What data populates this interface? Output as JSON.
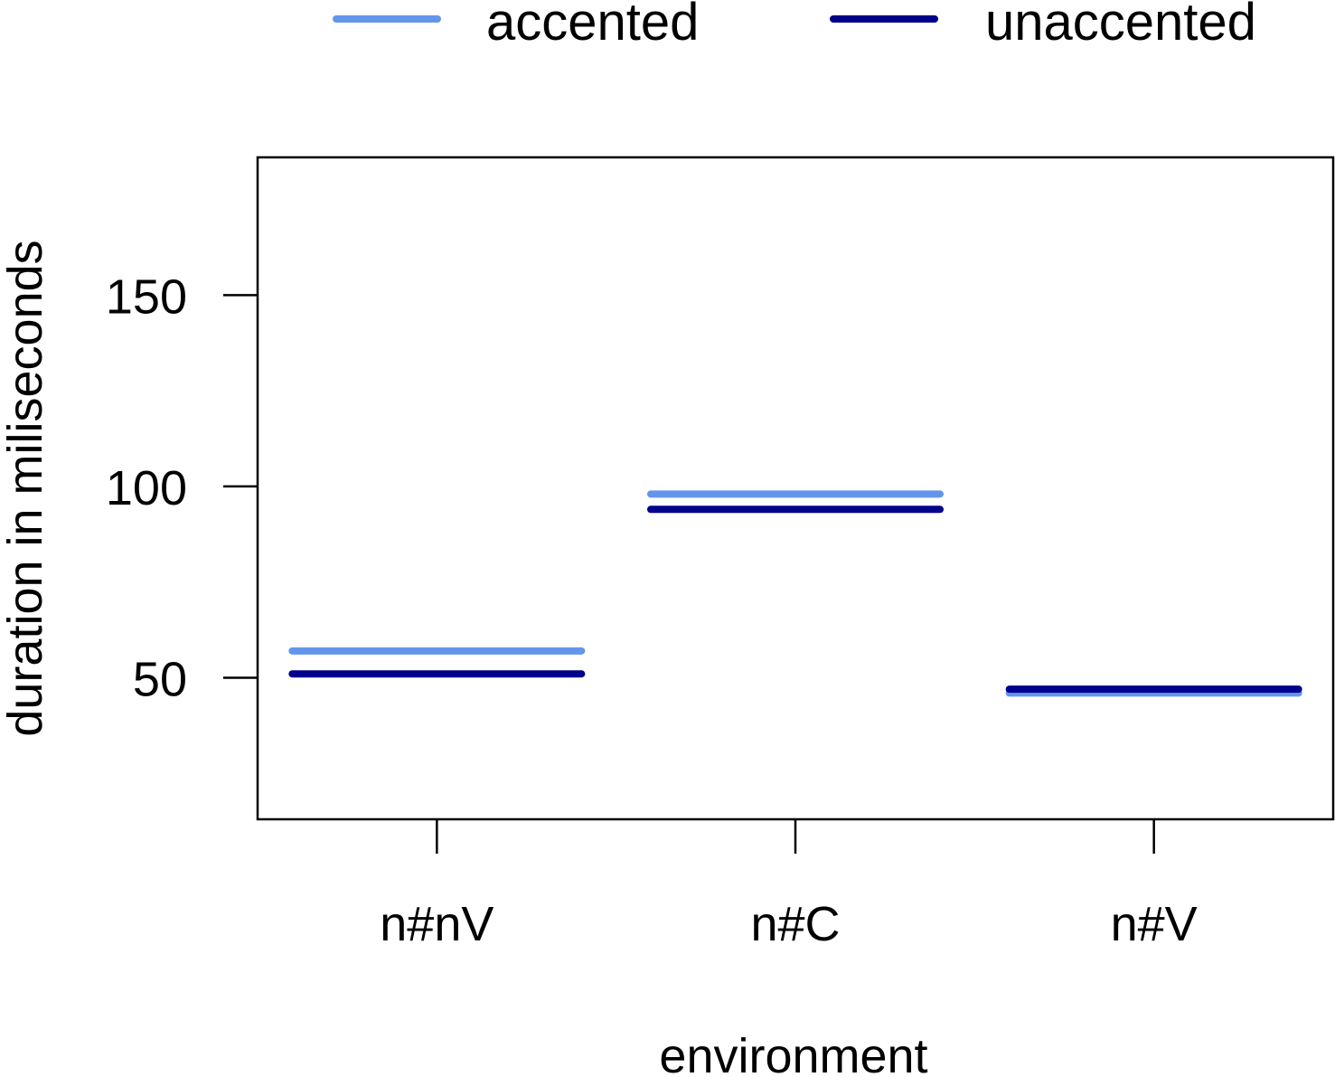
{
  "chart_data": {
    "type": "line",
    "categories": [
      "n#nV",
      "n#C",
      "n#V"
    ],
    "series": [
      {
        "name": "accented",
        "color": "#6495ED",
        "values": [
          57,
          98,
          46
        ]
      },
      {
        "name": "unaccented",
        "color": "#00008B",
        "values": [
          51,
          94,
          47
        ]
      }
    ],
    "xlabel": "environment",
    "ylabel": "duration in miliseconds",
    "yticks": [
      50,
      100,
      150
    ],
    "ylim": [
      13,
      186
    ],
    "grid": false,
    "legend_position": "top"
  }
}
